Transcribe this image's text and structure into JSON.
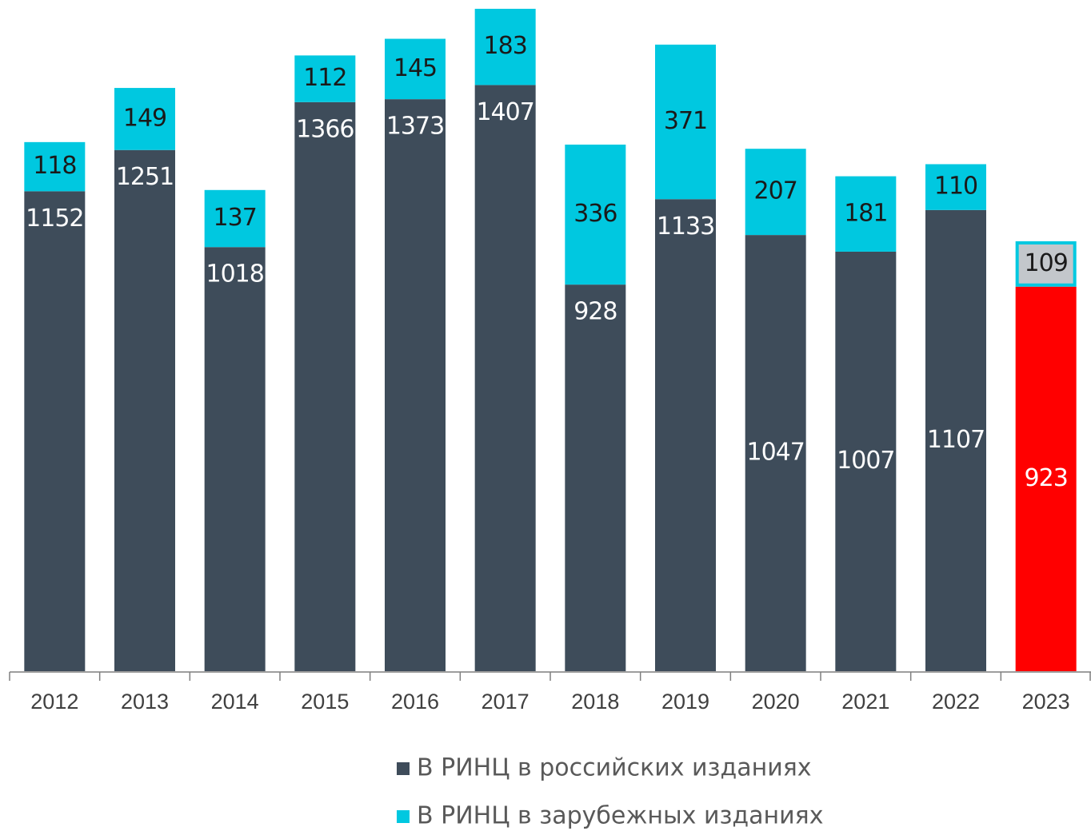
{
  "chart_data": {
    "type": "stacked_bar",
    "categories": [
      "2012",
      "2013",
      "2014",
      "2015",
      "2016",
      "2017",
      "2018",
      "2019",
      "2020",
      "2021",
      "2022",
      "2023"
    ],
    "series": [
      {
        "name": "В РИНЦ в российских изданиях",
        "color": "#3e4c5a",
        "point_colors": [
          "#3e4c5a",
          "#3e4c5a",
          "#3e4c5a",
          "#3e4c5a",
          "#3e4c5a",
          "#3e4c5a",
          "#3e4c5a",
          "#3e4c5a",
          "#3e4c5a",
          "#3e4c5a",
          "#3e4c5a",
          "#ff0000"
        ],
        "values": [
          1152,
          1251,
          1018,
          1366,
          1373,
          1407,
          928,
          1133,
          1047,
          1007,
          1107,
          923
        ]
      },
      {
        "name": "В РИНЦ в зарубежных изданиях",
        "color": "#00c8e0",
        "point_colors": [
          "#00c8e0",
          "#00c8e0",
          "#00c8e0",
          "#00c8e0",
          "#00c8e0",
          "#00c8e0",
          "#00c8e0",
          "#00c8e0",
          "#00c8e0",
          "#00c8e0",
          "#00c8e0",
          "#c3c7cb"
        ],
        "values": [
          118,
          149,
          137,
          112,
          145,
          183,
          336,
          371,
          207,
          181,
          110,
          109
        ]
      }
    ]
  }
}
